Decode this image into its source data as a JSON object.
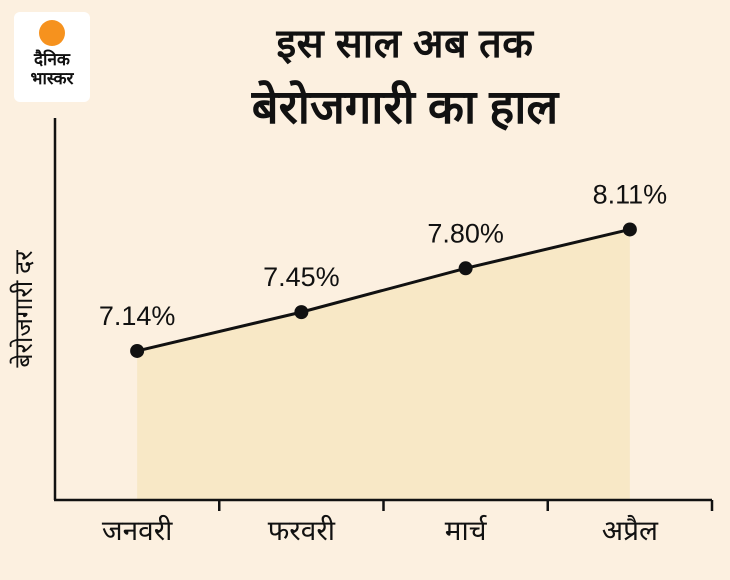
{
  "logo": {
    "line1": "दैनिक",
    "line2": "भास्कर",
    "dot_color": "#f6921e"
  },
  "title": {
    "line1": "इस साल अब तक",
    "line2": "बेरोजगारी का हाल"
  },
  "chart_data": {
    "type": "area",
    "title": "इस साल अब तक बेरोजगारी का हाल",
    "categories": [
      "जनवरी",
      "फरवरी",
      "मार्च",
      "अप्रैल"
    ],
    "values": [
      7.14,
      7.45,
      7.8,
      8.11
    ],
    "point_labels": [
      "7.14%",
      "7.45%",
      "7.80%",
      "8.11%"
    ],
    "xlabel": "",
    "ylabel": "बेरोजगारी दर",
    "ylim": [
      5.95,
      9.0
    ],
    "grid": "off",
    "legend": "none",
    "colors": {
      "background": "#fcf0e0",
      "area_fill": "#f8e8c6",
      "line": "#111111",
      "point": "#111111",
      "axis": "#111111",
      "text": "#111111"
    }
  }
}
